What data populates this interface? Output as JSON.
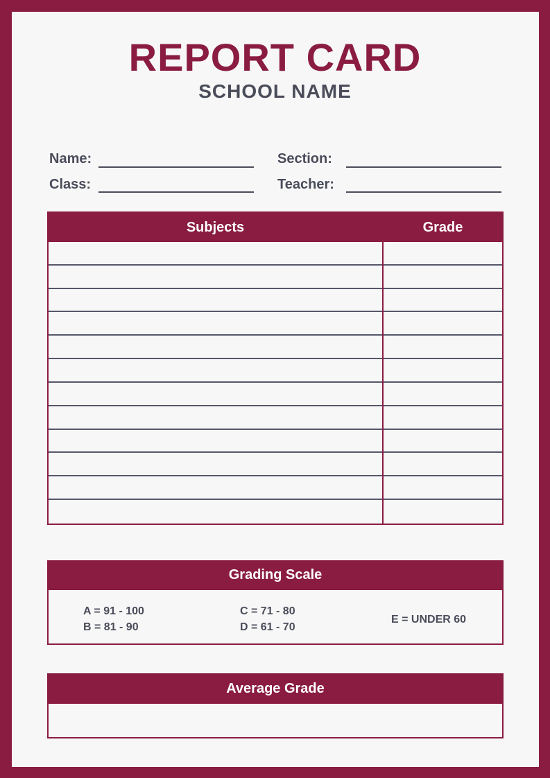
{
  "header": {
    "title": "REPORT CARD",
    "school": "SCHOOL NAME"
  },
  "fields": {
    "name": "Name:",
    "section": "Section:",
    "class": "Class:",
    "teacher": "Teacher:"
  },
  "table": {
    "columns": [
      "Subjects",
      "Grade"
    ],
    "rows": 12
  },
  "grading_scale": {
    "title": "Grading Scale",
    "items": [
      "A = 91 - 100",
      "B = 81 - 90",
      "C = 71 - 80",
      "D = 61 - 70",
      "E = UNDER 60"
    ]
  },
  "average": {
    "title": "Average Grade"
  },
  "colors": {
    "accent": "#8a1c42",
    "text": "#4a4c5a",
    "background": "#f7f7f7"
  }
}
